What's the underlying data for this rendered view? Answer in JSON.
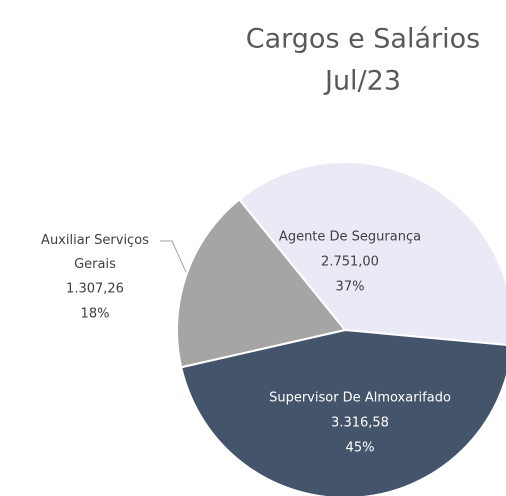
{
  "chart_data": {
    "type": "pie",
    "title": "Cargos e Salários",
    "subtitle": "Jul/23",
    "categories": [
      "Agente De Segurança",
      "Supervisor De Almoxarifado",
      "Auxiliar Serviços Gerais"
    ],
    "values": [
      2751.0,
      3316.58,
      1307.26
    ],
    "value_labels": [
      "2.751,00",
      "3.316,58",
      "1.307,26"
    ],
    "percent_labels": [
      "37%",
      "45%",
      "18%"
    ],
    "colors": [
      "#e9eaf6",
      "#44546a",
      "#a5a5a5"
    ]
  }
}
